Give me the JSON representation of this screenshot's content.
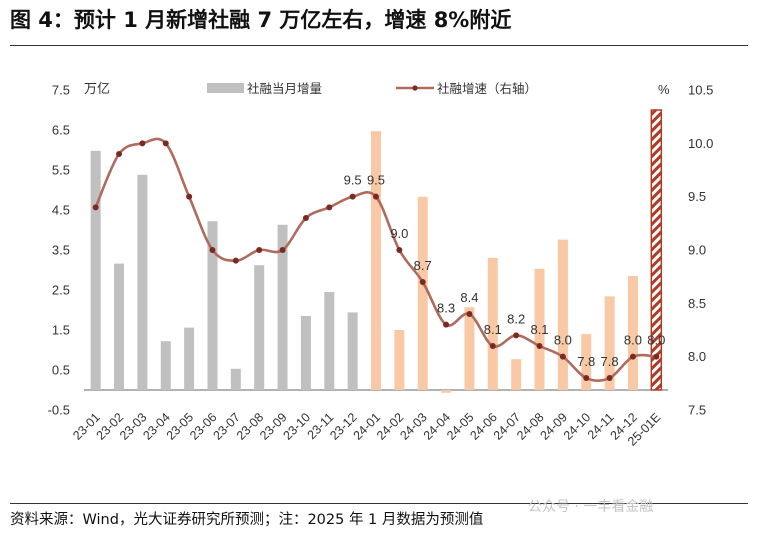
{
  "header": {
    "title": "图 4：预计 1 月新增社融 7 万亿左右，增速 8%附近"
  },
  "footer": {
    "source": "资料来源：Wind，光大证券研究所预测；注：2025 年 1 月数据为预测值",
    "watermark": "公众号 · 一丰看金融"
  },
  "colors": {
    "bar_historical": "#c0c0c0",
    "bar_2024": "#f8c9a4",
    "bar_forecast_stripe": "#b13a26",
    "line": "#b06a5e",
    "axis_text": "#333333"
  },
  "chart_data": {
    "type": "bar",
    "combo": "bar + line (line on right axis)",
    "categories": [
      "23-01",
      "23-02",
      "23-03",
      "23-04",
      "23-05",
      "23-06",
      "23-07",
      "23-08",
      "23-09",
      "23-10",
      "23-11",
      "23-12",
      "24-01",
      "24-02",
      "24-03",
      "24-04",
      "24-05",
      "24-06",
      "24-07",
      "24-08",
      "24-09",
      "24-10",
      "24-11",
      "24-12",
      "25-01E"
    ],
    "left_axis": {
      "unit": "万亿",
      "ylim": [
        -0.5,
        7.5
      ],
      "ticks": [
        "7.5",
        "6.5",
        "5.5",
        "4.5",
        "3.5",
        "2.5",
        "1.5",
        "0.5",
        "-0.5"
      ]
    },
    "right_axis": {
      "unit": "%",
      "ylim": [
        7.5,
        10.5
      ],
      "ticks": [
        "10.5",
        "10.0",
        "9.5",
        "9.0",
        "8.5",
        "8.0",
        "7.5"
      ]
    },
    "series": [
      {
        "name": "社融当月增量",
        "type": "bar",
        "axis": "left",
        "values": [
          5.98,
          3.16,
          5.38,
          1.22,
          1.56,
          4.22,
          0.53,
          3.12,
          4.13,
          1.85,
          2.45,
          1.94,
          6.47,
          1.5,
          4.83,
          -0.07,
          2.07,
          3.3,
          0.77,
          3.03,
          3.76,
          1.4,
          2.34,
          2.85,
          7.0
        ],
        "forecast_index": 24
      },
      {
        "name": "社融增速（右轴）",
        "type": "line",
        "axis": "right",
        "values": [
          9.4,
          9.9,
          10.0,
          10.0,
          9.5,
          9.0,
          8.9,
          9.0,
          9.0,
          9.3,
          9.4,
          9.5,
          9.5,
          9.0,
          8.7,
          8.3,
          8.4,
          8.1,
          8.2,
          8.1,
          8.0,
          7.8,
          7.8,
          8.0,
          8.0
        ],
        "data_labels": [
          null,
          null,
          null,
          null,
          null,
          null,
          null,
          null,
          null,
          null,
          null,
          "9.5",
          "9.5",
          "9.0",
          "8.7",
          "8.3",
          "8.4",
          "8.1",
          "8.2",
          "8.1",
          "8.0",
          "7.8",
          "7.8",
          "8.0",
          "8.0"
        ]
      }
    ],
    "legend_placement": "top",
    "grid": false
  }
}
